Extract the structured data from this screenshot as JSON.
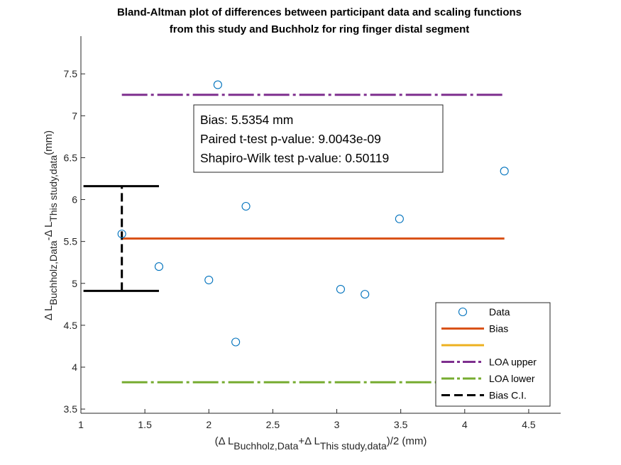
{
  "chart_data": {
    "type": "scatter",
    "title": [
      "Bland-Altman plot of differences between participant data and scaling functions",
      "from this study and Buchholz for ring finger distal segment"
    ],
    "xlabel": {
      "prefix": "(Δ L",
      "sub1": "Buchholz,Data",
      "mid": "+Δ L",
      "sub2": "This study,data",
      "suffix": ")/2 (mm)"
    },
    "ylabel": {
      "prefix": "Δ L",
      "sub1": "Buchholz,Data",
      "mid": "-Δ L",
      "sub2": "This study,data",
      "suffix": "(mm)"
    },
    "xlim": [
      1,
      4.75
    ],
    "ylim": [
      3.45,
      7.95
    ],
    "xticks": [
      1,
      1.5,
      2,
      2.5,
      3,
      3.5,
      4,
      4.5
    ],
    "xtick_labels": [
      "1",
      "1.5",
      "2",
      "2.5",
      "3",
      "3.5",
      "4",
      "4.5"
    ],
    "yticks": [
      3.5,
      4,
      4.5,
      5,
      5.5,
      6,
      6.5,
      7,
      7.5
    ],
    "ytick_labels": [
      "3.5",
      "4",
      "4.5",
      "5",
      "5.5",
      "6",
      "6.5",
      "7",
      "7.5"
    ],
    "points": [
      {
        "x": 1.32,
        "y": 5.59
      },
      {
        "x": 1.61,
        "y": 5.2
      },
      {
        "x": 2.0,
        "y": 5.04
      },
      {
        "x": 2.07,
        "y": 7.37
      },
      {
        "x": 2.21,
        "y": 4.3
      },
      {
        "x": 2.29,
        "y": 5.92
      },
      {
        "x": 3.03,
        "y": 4.93
      },
      {
        "x": 3.22,
        "y": 4.87
      },
      {
        "x": 3.49,
        "y": 5.77
      },
      {
        "x": 4.31,
        "y": 6.34
      }
    ],
    "bias": {
      "x_range": [
        1.32,
        4.31
      ],
      "y": 5.5354
    },
    "loa_upper": {
      "x_range": [
        1.32,
        4.31
      ],
      "y": 7.25
    },
    "loa_lower": {
      "x_range": [
        1.32,
        4.31
      ],
      "y": 3.82
    },
    "bias_ci": {
      "x": 1.32,
      "y_range": [
        4.91,
        6.16
      ],
      "cap_x_range": [
        1.02,
        1.61
      ]
    },
    "stats_box": [
      "Bias: 5.5354 mm",
      "Paired t-test p-value: 9.0043e-09",
      "Shapiro-Wilk test p-value: 0.50119"
    ],
    "legend": {
      "placement": "bottom-right",
      "entries": [
        {
          "label": "Data",
          "style": "marker",
          "color": "#0072BD"
        },
        {
          "label": "Bias",
          "style": "solid",
          "color": "#D95319"
        },
        {
          "label": "",
          "style": "solid",
          "color": "#EDB120"
        },
        {
          "label": "LOA upper",
          "style": "dashdot",
          "color": "#7E2F8E"
        },
        {
          "label": "LOA lower",
          "style": "dashdot",
          "color": "#77AC30"
        },
        {
          "label": "Bias C.I.",
          "style": "dashed",
          "color": "#000000"
        }
      ]
    },
    "colors": {
      "data": "#0072BD",
      "bias": "#D95319",
      "loa_upper": "#7E2F8E",
      "loa_lower": "#77AC30",
      "ci": "#000000",
      "axis": "#262626"
    }
  }
}
